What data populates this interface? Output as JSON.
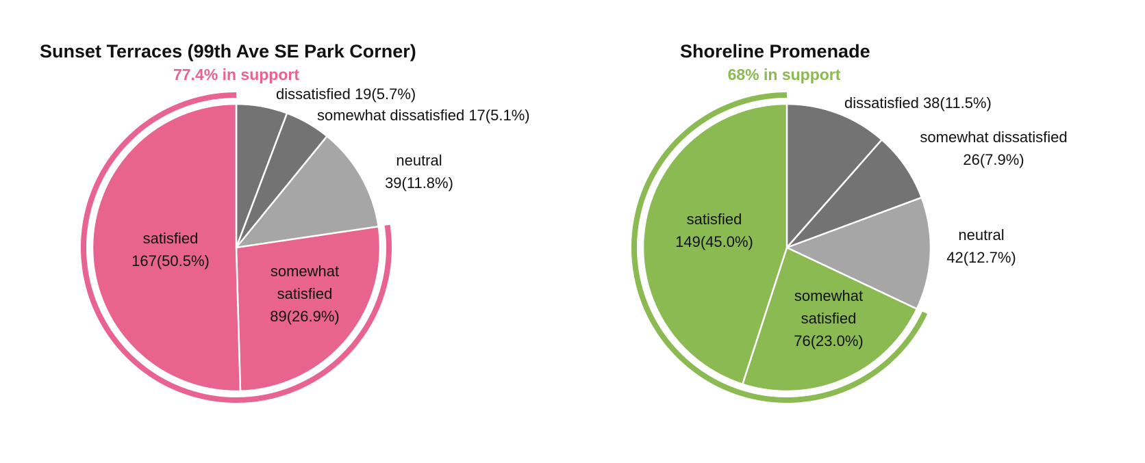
{
  "chart_data": [
    {
      "type": "pie",
      "title": "Sunset Terraces (99th Ave SE Park Corner)",
      "subtitle": "77.4% in support",
      "accent_color": "#E8648F",
      "slices": [
        {
          "name": "dissatisfied",
          "value": 19,
          "percent": 5.7,
          "color": "#737373",
          "label_lines": [
            "dissatisfied  19(5.7%)"
          ]
        },
        {
          "name": "somewhat dissatisfied",
          "value": 17,
          "percent": 5.1,
          "color": "#737373",
          "label_lines": [
            "somewhat dissatisfied 17(5.1%)"
          ]
        },
        {
          "name": "neutral",
          "value": 39,
          "percent": 11.8,
          "color": "#A6A6A6",
          "label_lines": [
            "neutral",
            "39(11.8%)"
          ]
        },
        {
          "name": "somewhat satisfied",
          "value": 89,
          "percent": 26.9,
          "color": "#E8648F",
          "label_lines": [
            "somewhat",
            "satisfied",
            "89(26.9%)"
          ]
        },
        {
          "name": "satisfied",
          "value": 167,
          "percent": 50.5,
          "color": "#E8648F",
          "label_lines": [
            "satisfied",
            "167(50.5%)"
          ]
        }
      ],
      "support_arc": [
        "somewhat satisfied",
        "satisfied"
      ]
    },
    {
      "type": "pie",
      "title": "Shoreline Promenade",
      "subtitle": "68% in support",
      "accent_color": "#8BBA52",
      "slices": [
        {
          "name": "dissatisfied",
          "value": 38,
          "percent": 11.5,
          "color": "#737373",
          "label_lines": [
            "dissatisfied  38(11.5%)"
          ]
        },
        {
          "name": "somewhat dissatisfied",
          "value": 26,
          "percent": 7.9,
          "color": "#737373",
          "label_lines": [
            "somewhat dissatisfied",
            "26(7.9%)"
          ]
        },
        {
          "name": "neutral",
          "value": 42,
          "percent": 12.7,
          "color": "#A6A6A6",
          "label_lines": [
            "neutral",
            "42(12.7%)"
          ]
        },
        {
          "name": "somewhat satisfied",
          "value": 76,
          "percent": 23.0,
          "color": "#8BBA52",
          "label_lines": [
            "somewhat",
            "satisfied",
            "76(23.0%)"
          ]
        },
        {
          "name": "satisfied",
          "value": 149,
          "percent": 45.0,
          "color": "#8BBA52",
          "label_lines": [
            "satisfied",
            "149(45.0%)"
          ]
        }
      ],
      "support_arc": [
        "somewhat satisfied",
        "satisfied"
      ]
    }
  ]
}
